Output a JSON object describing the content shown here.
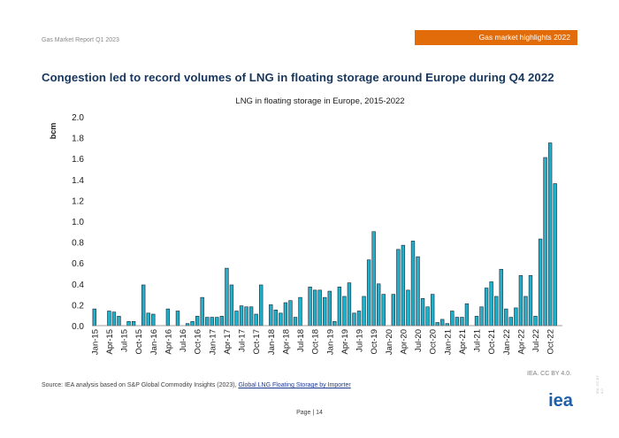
{
  "header": {
    "report_name": "Gas Market Report Q1 2023",
    "highlight_tag": "Gas market highlights 2022"
  },
  "page_title": "Congestion led to record volumes of LNG in floating storage around Europe during Q4 2022",
  "chart_data": {
    "type": "bar",
    "title": "LNG in floating storage in Europe, 2015-2022",
    "xlabel": "",
    "ylabel": "bcm",
    "ylim": [
      0,
      2.0
    ],
    "yticks": [
      "0.0",
      "0.2",
      "0.4",
      "0.6",
      "0.8",
      "1.0",
      "1.2",
      "1.4",
      "1.6",
      "1.8",
      "2.0"
    ],
    "grid": false,
    "tick_labels": [
      "Jan-15",
      "Apr-15",
      "Jul-15",
      "Oct-15",
      "Jan-16",
      "Apr-16",
      "Jul-16",
      "Oct-16",
      "Jan-17",
      "Apr-17",
      "Jul-17",
      "Oct-17",
      "Jan-18",
      "Apr-18",
      "Jul-18",
      "Oct-18",
      "Jan-19",
      "Apr-19",
      "Jul-19",
      "Oct-19",
      "Jan-20",
      "Apr-20",
      "Jul-20",
      "Oct-20",
      "Jan-21",
      "Apr-21",
      "Jul-21",
      "Oct-21",
      "Jan-22",
      "Apr-22",
      "Jul-22",
      "Oct-22"
    ],
    "categories": [
      "Jan-15",
      "Feb-15",
      "Mar-15",
      "Apr-15",
      "May-15",
      "Jun-15",
      "Jul-15",
      "Aug-15",
      "Sep-15",
      "Oct-15",
      "Nov-15",
      "Dec-15",
      "Jan-16",
      "Feb-16",
      "Mar-16",
      "Apr-16",
      "May-16",
      "Jun-16",
      "Jul-16",
      "Aug-16",
      "Sep-16",
      "Oct-16",
      "Nov-16",
      "Dec-16",
      "Jan-17",
      "Feb-17",
      "Mar-17",
      "Apr-17",
      "May-17",
      "Jun-17",
      "Jul-17",
      "Aug-17",
      "Sep-17",
      "Oct-17",
      "Nov-17",
      "Dec-17",
      "Jan-18",
      "Feb-18",
      "Mar-18",
      "Apr-18",
      "May-18",
      "Jun-18",
      "Jul-18",
      "Aug-18",
      "Sep-18",
      "Oct-18",
      "Nov-18",
      "Dec-18",
      "Jan-19",
      "Feb-19",
      "Mar-19",
      "Apr-19",
      "May-19",
      "Jun-19",
      "Jul-19",
      "Aug-19",
      "Sep-19",
      "Oct-19",
      "Nov-19",
      "Dec-19",
      "Jan-20",
      "Feb-20",
      "Mar-20",
      "Apr-20",
      "May-20",
      "Jun-20",
      "Jul-20",
      "Aug-20",
      "Sep-20",
      "Oct-20",
      "Nov-20",
      "Dec-20",
      "Jan-21",
      "Feb-21",
      "Mar-21",
      "Apr-21",
      "May-21",
      "Jun-21",
      "Jul-21",
      "Aug-21",
      "Sep-21",
      "Oct-21",
      "Nov-21",
      "Dec-21",
      "Jan-22",
      "Feb-22",
      "Mar-22",
      "Apr-22",
      "May-22",
      "Jun-22",
      "Jul-22",
      "Aug-22",
      "Sep-22",
      "Oct-22",
      "Nov-22",
      "Dec-22"
    ],
    "values": [
      0.16,
      0,
      0,
      0.14,
      0.13,
      0.09,
      0,
      0.04,
      0.04,
      0,
      0.39,
      0.12,
      0.11,
      0,
      0,
      0.16,
      0,
      0.14,
      0,
      0.02,
      0.04,
      0.09,
      0.27,
      0.08,
      0.08,
      0.08,
      0.09,
      0.55,
      0.39,
      0.14,
      0.19,
      0.18,
      0.18,
      0.11,
      0.39,
      0,
      0.2,
      0.15,
      0.12,
      0.22,
      0.24,
      0.08,
      0.27,
      0,
      0.37,
      0.34,
      0.34,
      0.27,
      0.33,
      0.04,
      0.37,
      0.28,
      0.41,
      0.12,
      0.14,
      0.28,
      0.63,
      0.9,
      0.4,
      0.3,
      0,
      0.3,
      0.73,
      0.77,
      0.34,
      0.81,
      0.66,
      0.26,
      0.18,
      0.3,
      0.03,
      0.06,
      0.02,
      0.14,
      0.08,
      0.08,
      0.21,
      0,
      0.09,
      0.18,
      0.36,
      0.42,
      0.28,
      0.54,
      0.16,
      0.08,
      0.17,
      0.48,
      0.28,
      0.48,
      0.09,
      0.83,
      1.61,
      1.75,
      1.36,
      0
    ],
    "bar_color": "#21b0c9"
  },
  "credit": "IEA. CC BY 4.0.",
  "source": {
    "prefix": "Source: IEA analysis based on S&P Global Commodity Insights (2023),",
    "link_text": "Global LNG Floating Storage by Importer"
  },
  "footer": {
    "page_label": "Page | 14",
    "logo_text": "iea",
    "side_mark": "IEA. CC BY 4.0"
  }
}
